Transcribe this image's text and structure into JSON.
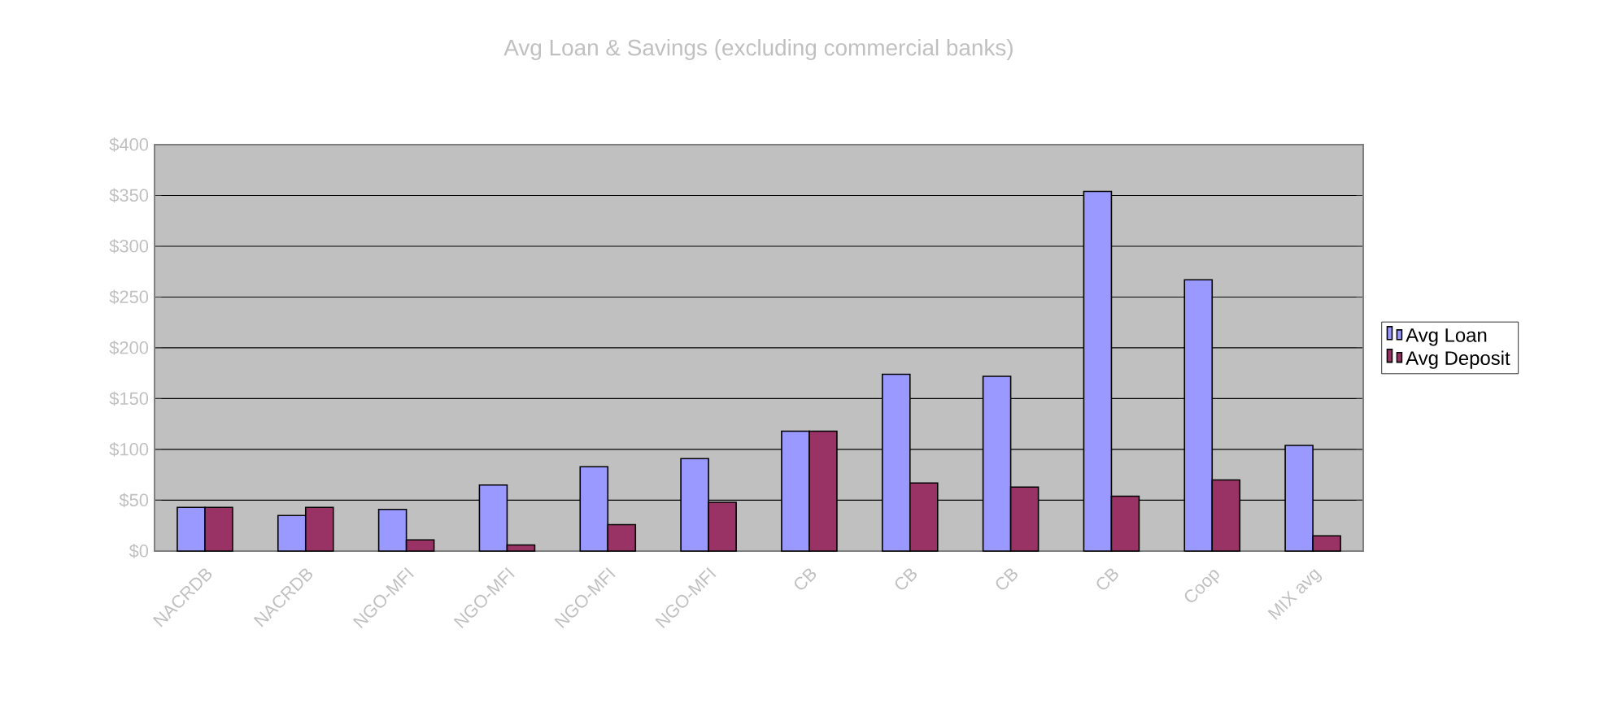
{
  "chart_data": {
    "type": "bar",
    "title": "Avg Loan & Savings (excluding commercial banks)",
    "categories": [
      "NACRDB",
      "NACRDB",
      "NGO-MFI",
      "NGO-MFI",
      "NGO-MFI",
      "NGO-MFI",
      "CB",
      "CB",
      "CB",
      "CB",
      "Coop",
      "MIX avg"
    ],
    "series": [
      {
        "name": "Avg Loan",
        "color": "#9999ff",
        "values": [
          43,
          35,
          41,
          65,
          83,
          91,
          118,
          174,
          172,
          354,
          267,
          104
        ]
      },
      {
        "name": "Avg Deposit",
        "color": "#993366",
        "values": [
          43,
          43,
          11,
          6,
          26,
          48,
          118,
          67,
          63,
          54,
          70,
          15
        ]
      }
    ],
    "ylim": [
      0,
      400
    ],
    "yticks": [
      {
        "value": 0,
        "label": "$0"
      },
      {
        "value": 50,
        "label": "$50"
      },
      {
        "value": 100,
        "label": "$100"
      },
      {
        "value": 150,
        "label": "$150"
      },
      {
        "value": 200,
        "label": "$200"
      },
      {
        "value": 250,
        "label": "$250"
      },
      {
        "value": 300,
        "label": "$300"
      },
      {
        "value": 350,
        "label": "$350"
      },
      {
        "value": 400,
        "label": "$400"
      }
    ],
    "grid": "y",
    "legend": "right"
  }
}
